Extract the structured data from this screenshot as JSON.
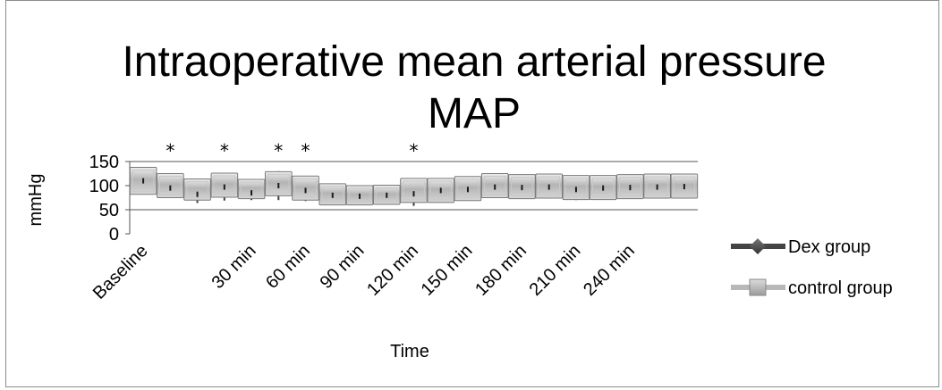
{
  "chart_data": {
    "type": "line",
    "title": [
      "Intraoperative mean arterial pressure",
      "MAP"
    ],
    "xlabel": "Time",
    "ylabel": "mmHg",
    "ylim": [
      0,
      150
    ],
    "yticks": [
      "150",
      "100",
      "50",
      "0"
    ],
    "yticks_values": [
      150,
      100,
      50,
      0
    ],
    "n_points": 21,
    "x_tick_labels": [
      {
        "index": 0,
        "label": "Baseline"
      },
      {
        "index": 4,
        "label": "30 min"
      },
      {
        "index": 6,
        "label": "60 min"
      },
      {
        "index": 8,
        "label": "90 min"
      },
      {
        "index": 10,
        "label": "120 min"
      },
      {
        "index": 12,
        "label": "150 min"
      },
      {
        "index": 14,
        "label": "180 min"
      },
      {
        "index": 16,
        "label": "210 min"
      },
      {
        "index": 18,
        "label": "240 min"
      }
    ],
    "significance_marker": "*",
    "significant_points": [
      1,
      3,
      5,
      6,
      10
    ],
    "series": [
      {
        "name": "Dex group",
        "color": "#555555",
        "values": [
          110,
          95,
          82,
          97,
          85,
          100,
          90,
          80,
          78,
          80,
          83,
          90,
          92,
          97,
          96,
          97,
          92,
          95,
          96,
          97,
          98
        ],
        "sd": [
          25,
          20,
          18,
          28,
          15,
          30,
          22,
          15,
          15,
          15,
          25,
          20,
          20,
          20,
          15,
          15,
          22,
          18,
          18,
          20,
          18
        ]
      },
      {
        "name": "control group",
        "color": "#b8b8b8",
        "values": [
          110,
          100,
          92,
          101,
          93,
          104,
          95,
          82,
          80,
          81,
          90,
          90,
          94,
          100,
          98,
          99,
          96,
          96,
          98,
          99,
          99
        ],
        "sd": [
          28,
          25,
          22,
          25,
          20,
          25,
          25,
          22,
          20,
          20,
          25,
          25,
          25,
          25,
          25,
          25,
          25,
          25,
          25,
          25,
          25
        ]
      }
    ],
    "legend_position": "right"
  }
}
